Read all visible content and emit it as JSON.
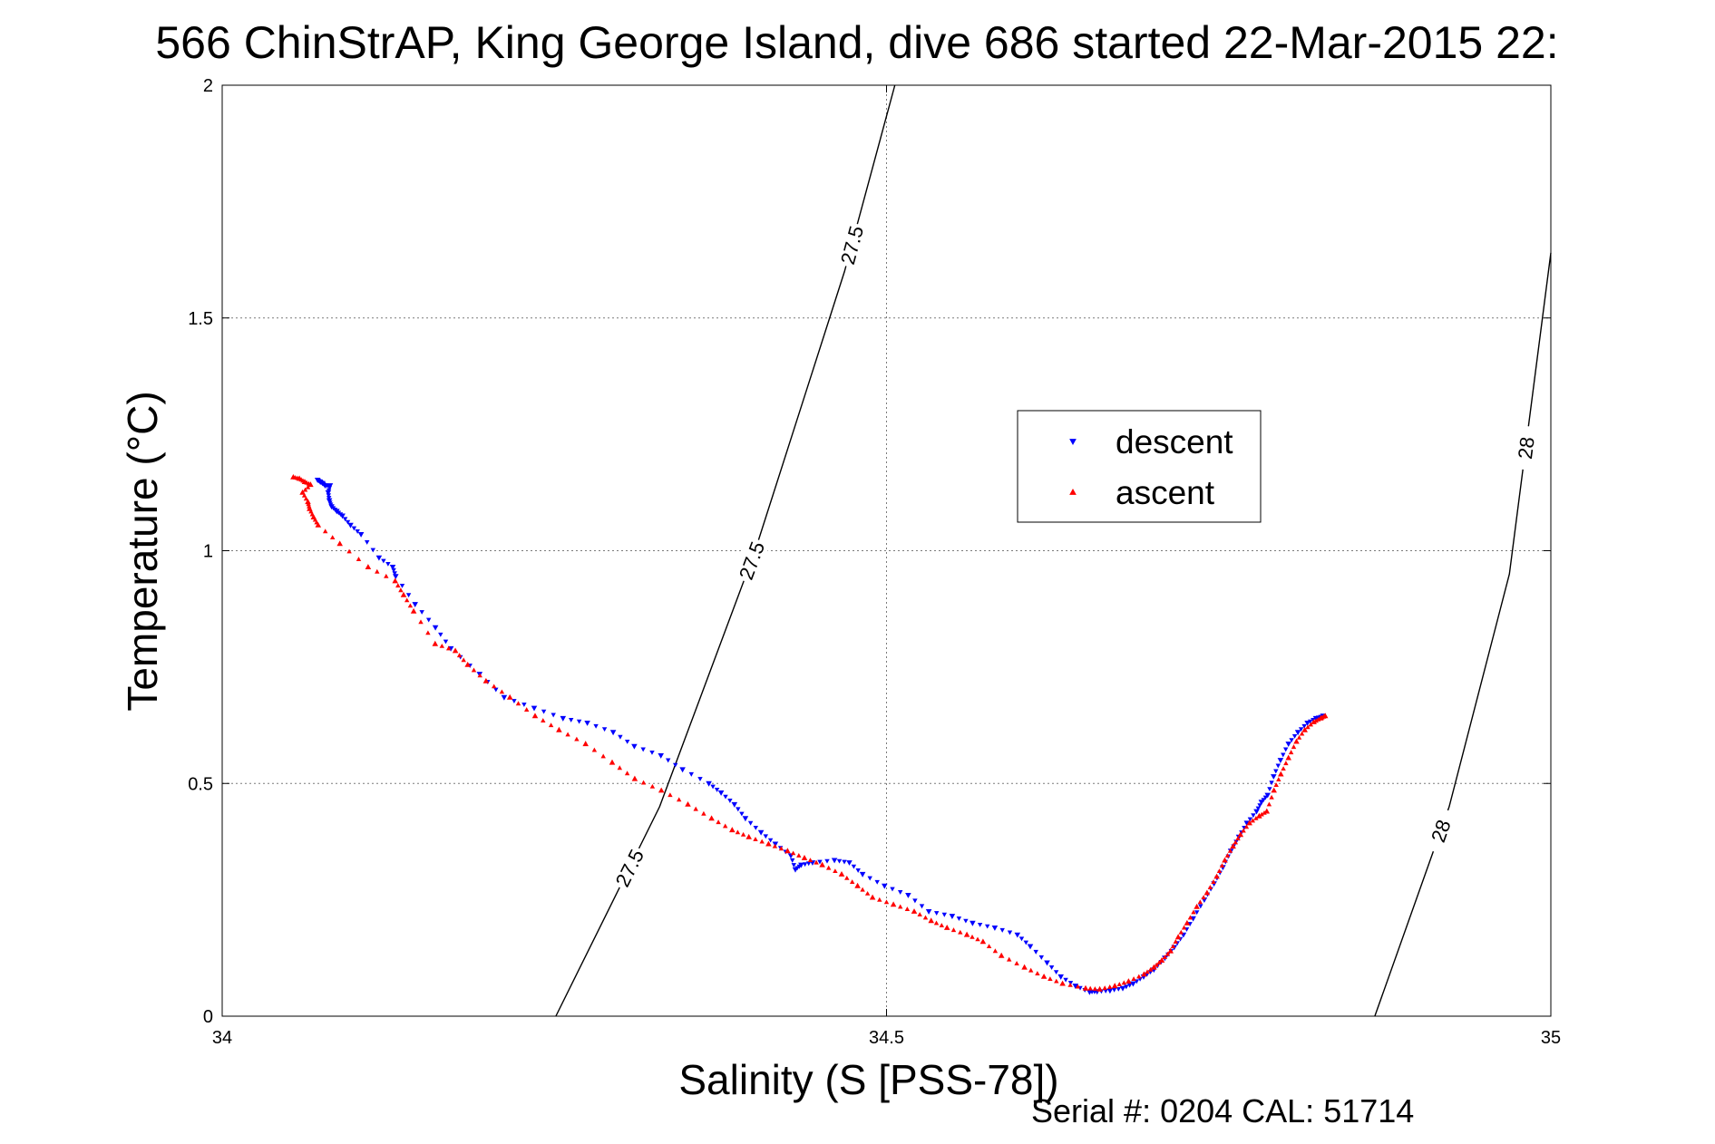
{
  "chart_data": {
    "type": "scatter",
    "title": "566 ChinStrAP, King George Island, dive 686 started 22-Mar-2015 22:",
    "xlabel": "Salinity (S [PSS-78])",
    "ylabel": "Temperature (°C)",
    "xlim": [
      34,
      35
    ],
    "ylim": [
      0,
      2
    ],
    "x_ticks": [
      "34",
      "34.5",
      "35"
    ],
    "y_ticks": [
      "0",
      "0.5",
      "1",
      "1.5",
      "2"
    ],
    "grid": true,
    "legend_position": "upper-middle-right",
    "footer": "Serial #: 0204  CAL: 51714",
    "density_contours": [
      {
        "label": "27.5",
        "label_texts": [
          "27.5",
          "27.5",
          "27.5"
        ],
        "points": [
          [
            34.2511,
            0
          ],
          [
            34.3292,
            0.45
          ],
          [
            34.4011,
            1.0
          ],
          [
            34.4684,
            1.6
          ],
          [
            34.5063,
            2.0
          ]
        ]
      },
      {
        "label": "28",
        "label_texts": [
          "28",
          "28"
        ],
        "points": [
          [
            34.8675,
            0
          ],
          [
            34.9235,
            0.45
          ],
          [
            34.9688,
            0.95
          ],
          [
            35.0,
            1.64
          ]
        ]
      }
    ],
    "series": [
      {
        "name": "descent",
        "color": "#0000ff",
        "marker": "triangle-down",
        "points": [
          [
            34.0718,
            1.152
          ],
          [
            34.0738,
            1.148
          ],
          [
            34.0755,
            1.145
          ],
          [
            34.0775,
            1.14
          ],
          [
            34.0812,
            1.14
          ],
          [
            34.0798,
            1.125
          ],
          [
            34.0806,
            1.108
          ],
          [
            34.0823,
            1.095
          ],
          [
            34.0862,
            1.085
          ],
          [
            34.0905,
            1.075
          ],
          [
            34.0966,
            1.055
          ],
          [
            34.1045,
            1.035
          ],
          [
            34.118,
            0.985
          ],
          [
            34.1283,
            0.965
          ],
          [
            34.1306,
            0.945
          ],
          [
            34.1452,
            0.885
          ],
          [
            34.1605,
            0.835
          ],
          [
            34.1721,
            0.79
          ],
          [
            34.1937,
            0.735
          ],
          [
            34.2122,
            0.685
          ],
          [
            34.2348,
            0.662
          ],
          [
            34.2565,
            0.64
          ],
          [
            34.2748,
            0.63
          ],
          [
            34.2943,
            0.61
          ],
          [
            34.3102,
            0.58
          ],
          [
            34.3302,
            0.56
          ],
          [
            34.3465,
            0.53
          ],
          [
            34.3663,
            0.5
          ],
          [
            34.3755,
            0.48
          ],
          [
            34.3855,
            0.455
          ],
          [
            34.3938,
            0.425
          ],
          [
            34.4055,
            0.395
          ],
          [
            34.4163,
            0.37
          ],
          [
            34.428,
            0.345
          ],
          [
            34.4314,
            0.315
          ],
          [
            34.4358,
            0.325
          ],
          [
            34.4443,
            0.33
          ],
          [
            34.4608,
            0.335
          ],
          [
            34.472,
            0.33
          ],
          [
            34.482,
            0.305
          ],
          [
            34.4985,
            0.28
          ],
          [
            34.5163,
            0.26
          ],
          [
            34.5318,
            0.225
          ],
          [
            34.5494,
            0.215
          ],
          [
            34.5648,
            0.2
          ],
          [
            34.5815,
            0.19
          ],
          [
            34.5985,
            0.175
          ],
          [
            34.6082,
            0.15
          ],
          [
            34.6208,
            0.115
          ],
          [
            34.6312,
            0.085
          ],
          [
            34.6422,
            0.065
          ],
          [
            34.6528,
            0.052
          ],
          [
            34.6585,
            0.053
          ],
          [
            34.6682,
            0.055
          ],
          [
            34.6778,
            0.06
          ],
          [
            34.6856,
            0.07
          ],
          [
            34.6935,
            0.085
          ],
          [
            34.7012,
            0.1
          ],
          [
            34.7095,
            0.125
          ],
          [
            34.7165,
            0.148
          ],
          [
            34.7235,
            0.175
          ],
          [
            34.7308,
            0.21
          ],
          [
            34.7392,
            0.25
          ],
          [
            34.7465,
            0.285
          ],
          [
            34.7532,
            0.32
          ],
          [
            34.7591,
            0.355
          ],
          [
            34.7652,
            0.385
          ],
          [
            34.7712,
            0.415
          ],
          [
            34.7785,
            0.44
          ],
          [
            34.7822,
            0.46
          ],
          [
            34.7868,
            0.475
          ],
          [
            34.7913,
            0.515
          ],
          [
            34.7965,
            0.55
          ],
          [
            34.8025,
            0.585
          ],
          [
            34.8096,
            0.61
          ],
          [
            34.8168,
            0.63
          ],
          [
            34.8232,
            0.64
          ],
          [
            34.8285,
            0.645
          ]
        ]
      },
      {
        "name": "ascent",
        "color": "#ff0000",
        "marker": "triangle-up",
        "points": [
          [
            34.0535,
            1.158
          ],
          [
            34.0581,
            1.155
          ],
          [
            34.0621,
            1.148
          ],
          [
            34.0665,
            1.142
          ],
          [
            34.0605,
            1.125
          ],
          [
            34.0645,
            1.105
          ],
          [
            34.0658,
            1.09
          ],
          [
            34.0688,
            1.072
          ],
          [
            34.0722,
            1.055
          ],
          [
            34.0885,
            1.015
          ],
          [
            34.1098,
            0.965
          ],
          [
            34.1302,
            0.935
          ],
          [
            34.1365,
            0.905
          ],
          [
            34.1441,
            0.87
          ],
          [
            34.1603,
            0.8
          ],
          [
            34.1755,
            0.785
          ],
          [
            34.1848,
            0.755
          ],
          [
            34.1986,
            0.72
          ],
          [
            34.2165,
            0.685
          ],
          [
            34.2355,
            0.645
          ],
          [
            34.2535,
            0.615
          ],
          [
            34.2735,
            0.585
          ],
          [
            34.2935,
            0.545
          ],
          [
            34.3105,
            0.51
          ],
          [
            34.3305,
            0.485
          ],
          [
            34.3505,
            0.455
          ],
          [
            34.3683,
            0.425
          ],
          [
            34.3838,
            0.4
          ],
          [
            34.3964,
            0.385
          ],
          [
            34.4112,
            0.37
          ],
          [
            34.4255,
            0.355
          ],
          [
            34.4382,
            0.34
          ],
          [
            34.4516,
            0.325
          ],
          [
            34.4662,
            0.305
          ],
          [
            34.4782,
            0.28
          ],
          [
            34.4895,
            0.255
          ],
          [
            34.5052,
            0.24
          ],
          [
            34.5208,
            0.225
          ],
          [
            34.5336,
            0.205
          ],
          [
            34.5455,
            0.19
          ],
          [
            34.5605,
            0.175
          ],
          [
            34.5726,
            0.16
          ],
          [
            34.5865,
            0.13
          ],
          [
            34.6038,
            0.105
          ],
          [
            34.6185,
            0.085
          ],
          [
            34.6325,
            0.07
          ],
          [
            34.6498,
            0.06
          ],
          [
            34.6605,
            0.058
          ],
          [
            34.6718,
            0.065
          ],
          [
            34.6822,
            0.075
          ],
          [
            34.6938,
            0.09
          ],
          [
            34.7012,
            0.105
          ],
          [
            34.7072,
            0.12
          ],
          [
            34.7138,
            0.14
          ],
          [
            34.7195,
            0.17
          ],
          [
            34.7262,
            0.2
          ],
          [
            34.7335,
            0.235
          ],
          [
            34.7412,
            0.265
          ],
          [
            34.7485,
            0.3
          ],
          [
            34.7546,
            0.335
          ],
          [
            34.7608,
            0.365
          ],
          [
            34.7664,
            0.39
          ],
          [
            34.7732,
            0.415
          ],
          [
            34.7805,
            0.43
          ],
          [
            34.7862,
            0.44
          ],
          [
            34.7916,
            0.485
          ],
          [
            34.7968,
            0.52
          ],
          [
            34.8025,
            0.555
          ],
          [
            34.8085,
            0.59
          ],
          [
            34.8148,
            0.615
          ],
          [
            34.8216,
            0.632
          ],
          [
            34.8268,
            0.64
          ],
          [
            34.8302,
            0.645
          ]
        ]
      }
    ]
  }
}
